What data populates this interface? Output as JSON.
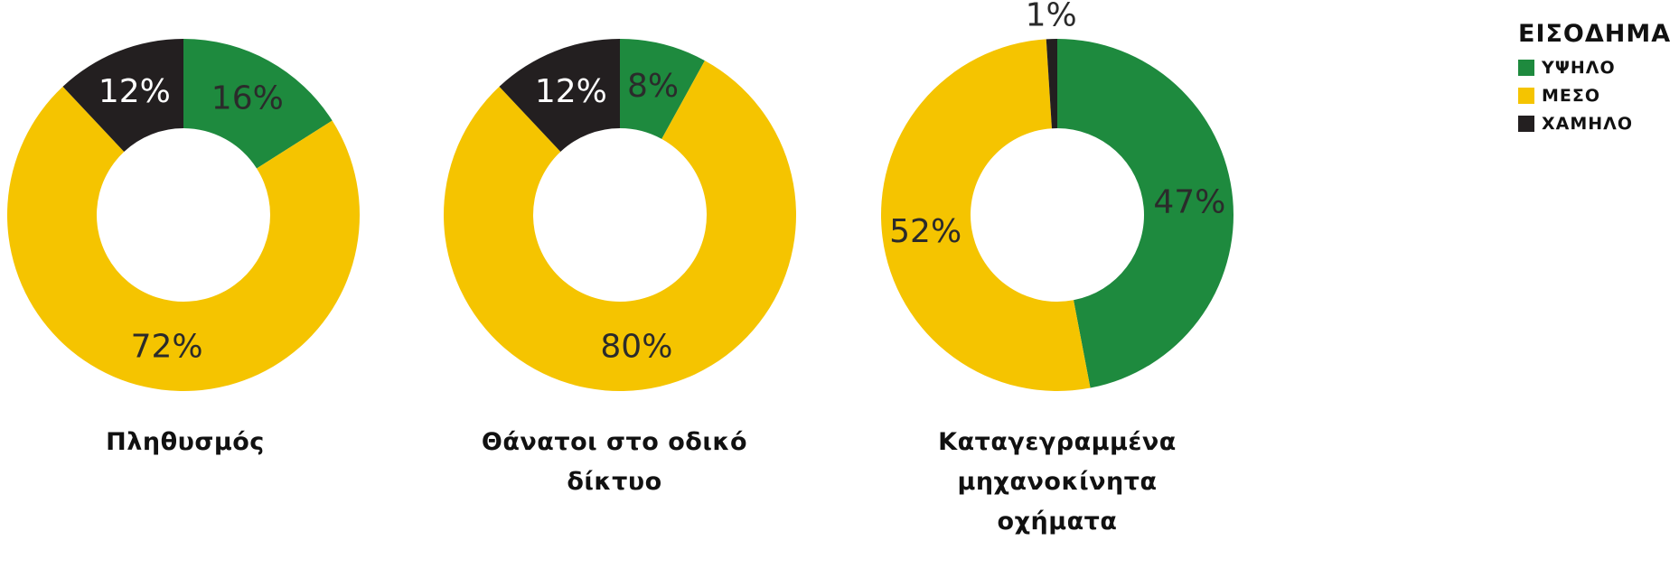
{
  "colors": {
    "high": "#1e8a3e",
    "middle": "#f5c400",
    "low": "#231f20"
  },
  "legend": {
    "title": "ΕΙΣΟΔΗΜΑ",
    "items": [
      {
        "label": "ΥΨΗΛΟ",
        "key": "high"
      },
      {
        "label": "ΜΕΣΟ",
        "key": "middle"
      },
      {
        "label": "ΧΑΜΗΛΟ",
        "key": "low"
      }
    ]
  },
  "chart_data": [
    {
      "type": "pie",
      "title": "Πληθυσμός",
      "categories": [
        "ΥΨΗΛΟ",
        "ΜΕΣΟ",
        "ΧΑΜΗΛΟ"
      ],
      "values": [
        16,
        72,
        12
      ],
      "labels": [
        "16%",
        "72%",
        "12%"
      ]
    },
    {
      "type": "pie",
      "title_lines": [
        "Θάνατοι στο οδικό",
        "δίκτυο"
      ],
      "categories": [
        "ΥΨΗΛΟ",
        "ΜΕΣΟ",
        "ΧΑΜΗΛΟ"
      ],
      "values": [
        8,
        80,
        12
      ],
      "labels": [
        "8%",
        "80%",
        "12%"
      ]
    },
    {
      "type": "pie",
      "title_lines": [
        "Καταγεγραμμένα",
        "μηχανοκίνητα οχήματα"
      ],
      "categories": [
        "ΥΨΗΛΟ",
        "ΜΕΣΟ",
        "ΧΑΜΗΛΟ"
      ],
      "values": [
        47,
        52,
        1
      ],
      "labels": [
        "47%",
        "52%",
        "1%"
      ]
    }
  ]
}
